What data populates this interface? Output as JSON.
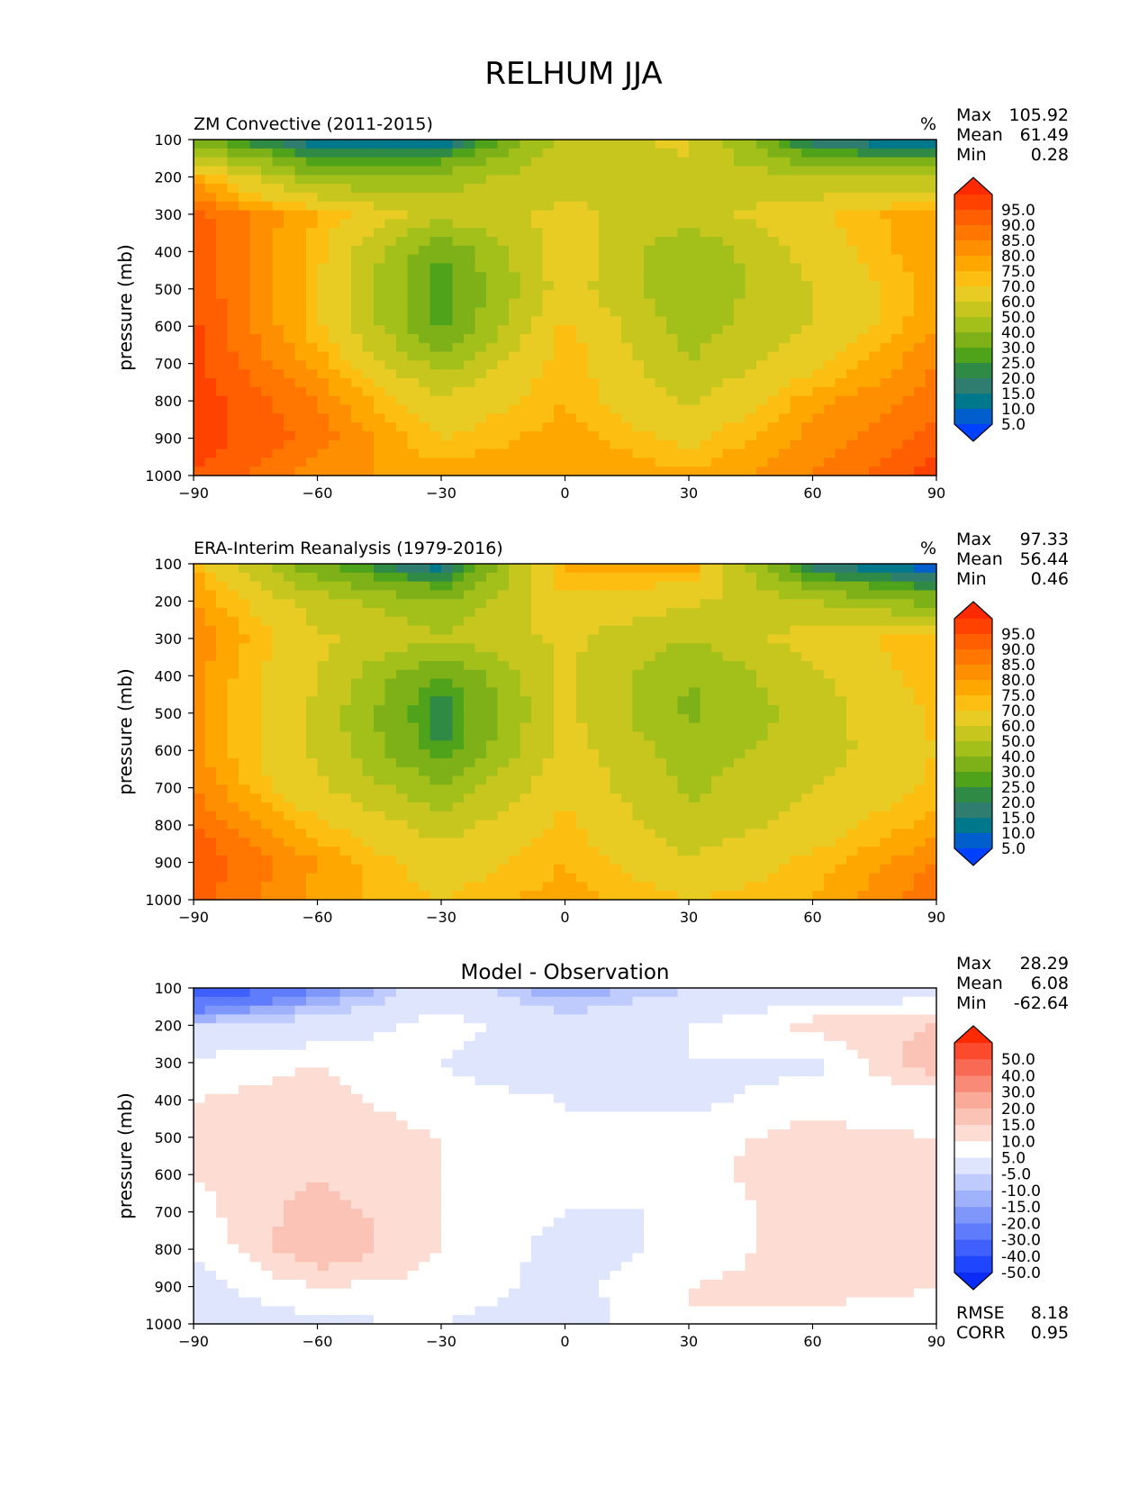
{
  "title": "RELHUM JJA",
  "panels": [
    {
      "id": "model",
      "subtitle": "ZM Convective (2011-2015)",
      "center_title": "",
      "units": "%",
      "stats": [
        {
          "label": "Max",
          "value": "105.92"
        },
        {
          "label": "Mean",
          "value": "61.49"
        },
        {
          "label": "Min",
          "value": "0.28"
        }
      ],
      "extra_stats": []
    },
    {
      "id": "obs",
      "subtitle": "ERA-Interim Reanalysis (1979-2016)",
      "center_title": "",
      "units": "%",
      "stats": [
        {
          "label": "Max",
          "value": "97.33"
        },
        {
          "label": "Mean",
          "value": "56.44"
        },
        {
          "label": "Min",
          "value": "0.46"
        }
      ],
      "extra_stats": []
    },
    {
      "id": "diff",
      "subtitle": "",
      "center_title": "Model - Observation",
      "units": "",
      "stats": [
        {
          "label": "Max",
          "value": "28.29"
        },
        {
          "label": "Mean",
          "value": "6.08"
        },
        {
          "label": "Min",
          "value": "-62.64"
        }
      ],
      "extra_stats": [
        {
          "label": "RMSE",
          "value": "8.18"
        },
        {
          "label": "CORR",
          "value": "0.95"
        }
      ]
    }
  ],
  "axes": {
    "ylabel": "pressure (mb)",
    "xlim": [
      -90,
      90
    ],
    "ylim": [
      1000,
      100
    ],
    "xticks": [
      "−90",
      "−60",
      "−30",
      "0",
      "30",
      "60",
      "90"
    ],
    "yticks": [
      "100",
      "200",
      "300",
      "400",
      "500",
      "600",
      "700",
      "800",
      "900",
      "1000"
    ]
  },
  "colorbars": {
    "field": {
      "labels": [
        "95.0",
        "90.0",
        "85.0",
        "80.0",
        "75.0",
        "70.0",
        "60.0",
        "50.0",
        "40.0",
        "30.0",
        "25.0",
        "20.0",
        "15.0",
        "10.0",
        "5.0"
      ],
      "colors": [
        "#ff2a00",
        "#ff4200",
        "#ff5f00",
        "#ff7700",
        "#fe8f00",
        "#fea700",
        "#fdbe12",
        "#e8cc24",
        "#c6c61e",
        "#a3c01a",
        "#7eb018",
        "#4ea31a",
        "#2e8a45",
        "#2e7d6e",
        "#00788c",
        "#005fcc",
        "#0040ff"
      ]
    },
    "diff": {
      "labels": [
        "50.0",
        "40.0",
        "30.0",
        "20.0",
        "15.0",
        "10.0",
        "5.0",
        "-5.0",
        "-10.0",
        "-15.0",
        "-20.0",
        "-30.0",
        "-40.0",
        "-50.0"
      ],
      "colors": [
        "#ff2a00",
        "#fc4a2f",
        "#f96a55",
        "#f98a78",
        "#f9aa99",
        "#fbc3b6",
        "#fddcd4",
        "#ffffff",
        "#dfe5fd",
        "#bfcbfc",
        "#9fb1fb",
        "#7f97fb",
        "#5f7cfc",
        "#3f60fd",
        "#1f45fe",
        "#0a2cf5"
      ]
    }
  },
  "chart_data": [
    {
      "type": "heatmap",
      "title": "ZM Convective (2011-2015)",
      "units": "%",
      "ylabel": "pressure (mb)",
      "x": [
        -90,
        -60,
        -30,
        0,
        30,
        60,
        90
      ],
      "y": [
        100,
        200,
        300,
        400,
        500,
        600,
        700,
        800,
        900,
        1000
      ],
      "z": [
        [
          30,
          10,
          8,
          55,
          62,
          15,
          5
        ],
        [
          78,
          40,
          45,
          58,
          58,
          50,
          48
        ],
        [
          92,
          75,
          55,
          62,
          55,
          68,
          80
        ],
        [
          95,
          72,
          30,
          68,
          40,
          65,
          80
        ],
        [
          95,
          72,
          25,
          65,
          42,
          60,
          78
        ],
        [
          96,
          72,
          28,
          72,
          45,
          60,
          80
        ],
        [
          97,
          78,
          45,
          75,
          50,
          68,
          85
        ],
        [
          98,
          85,
          62,
          75,
          58,
          78,
          88
        ],
        [
          98,
          88,
          70,
          78,
          68,
          82,
          92
        ],
        [
          95,
          82,
          78,
          80,
          76,
          85,
          98
        ]
      ],
      "stats": {
        "max": 105.92,
        "mean": 61.49,
        "min": 0.28
      }
    },
    {
      "type": "heatmap",
      "title": "ERA-Interim Reanalysis (1979-2016)",
      "units": "%",
      "ylabel": "pressure (mb)",
      "x": [
        -90,
        -60,
        -30,
        0,
        30,
        60,
        90
      ],
      "y": [
        100,
        200,
        300,
        400,
        500,
        600,
        700,
        800,
        900,
        1000
      ],
      "z": [
        [
          75,
          30,
          10,
          78,
          80,
          15,
          5
        ],
        [
          80,
          55,
          40,
          68,
          62,
          50,
          35
        ],
        [
          85,
          62,
          52,
          62,
          50,
          65,
          75
        ],
        [
          82,
          60,
          28,
          62,
          40,
          58,
          75
        ],
        [
          82,
          58,
          20,
          62,
          38,
          55,
          72
        ],
        [
          82,
          58,
          25,
          65,
          45,
          55,
          70
        ],
        [
          85,
          62,
          42,
          68,
          48,
          60,
          72
        ],
        [
          90,
          72,
          55,
          72,
          52,
          65,
          78
        ],
        [
          95,
          80,
          65,
          75,
          62,
          72,
          85
        ],
        [
          92,
          78,
          70,
          78,
          70,
          75,
          90
        ]
      ],
      "stats": {
        "max": 97.33,
        "mean": 56.44,
        "min": 0.46
      }
    },
    {
      "type": "heatmap",
      "title": "Model - Observation",
      "ylabel": "pressure (mb)",
      "x": [
        -90,
        -60,
        -30,
        0,
        30,
        60,
        90
      ],
      "y": [
        100,
        200,
        300,
        400,
        500,
        600,
        700,
        800,
        900,
        1000
      ],
      "z": [
        [
          -45,
          -20,
          0,
          -15,
          -5,
          0,
          0
        ],
        [
          -5,
          0,
          8,
          0,
          5,
          12,
          15
        ],
        [
          7,
          10,
          5,
          0,
          5,
          3,
          20
        ],
        [
          10,
          12,
          7,
          5,
          3,
          8,
          5
        ],
        [
          10,
          14,
          10,
          5,
          8,
          12,
          10
        ],
        [
          10,
          14,
          10,
          5,
          8,
          14,
          12
        ],
        [
          8,
          18,
          10,
          5,
          5,
          14,
          15
        ],
        [
          5,
          20,
          10,
          3,
          6,
          14,
          14
        ],
        [
          3,
          10,
          8,
          3,
          10,
          12,
          10
        ],
        [
          0,
          4,
          5,
          2,
          10,
          8,
          8
        ]
      ],
      "stats": {
        "max": 28.29,
        "mean": 6.08,
        "min": -62.64,
        "rmse": 8.18,
        "corr": 0.95
      }
    }
  ]
}
